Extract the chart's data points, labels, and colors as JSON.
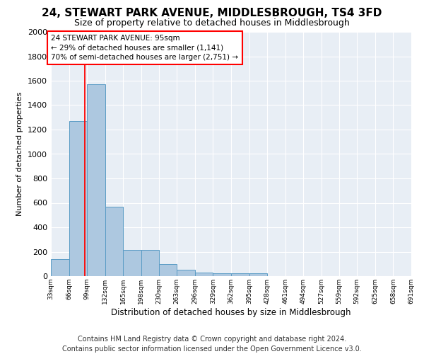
{
  "title": "24, STEWART PARK AVENUE, MIDDLESBROUGH, TS4 3FD",
  "subtitle": "Size of property relative to detached houses in Middlesbrough",
  "xlabel": "Distribution of detached houses by size in Middlesbrough",
  "ylabel": "Number of detached properties",
  "bar_color": "#adc8e0",
  "bar_edge_color": "#5a9cc5",
  "background_color": "#e8eef5",
  "grid_color": "#ffffff",
  "bin_edges": [
    33,
    66,
    99,
    132,
    165,
    198,
    230,
    263,
    296,
    329,
    362,
    395,
    428,
    461,
    494,
    527,
    559,
    592,
    625,
    658,
    691
  ],
  "bin_labels": [
    "33sqm",
    "66sqm",
    "99sqm",
    "132sqm",
    "165sqm",
    "198sqm",
    "230sqm",
    "263sqm",
    "296sqm",
    "329sqm",
    "362sqm",
    "395sqm",
    "428sqm",
    "461sqm",
    "494sqm",
    "527sqm",
    "559sqm",
    "592sqm",
    "625sqm",
    "658sqm",
    "691sqm"
  ],
  "bar_heights": [
    140,
    1270,
    1570,
    570,
    215,
    215,
    100,
    50,
    30,
    25,
    25,
    25,
    0,
    0,
    0,
    0,
    0,
    0,
    0,
    0
  ],
  "red_line_x": 95,
  "ylim": [
    0,
    2000
  ],
  "yticks": [
    0,
    200,
    400,
    600,
    800,
    1000,
    1200,
    1400,
    1600,
    1800,
    2000
  ],
  "annotation_title": "24 STEWART PARK AVENUE: 95sqm",
  "annotation_line1": "← 29% of detached houses are smaller (1,141)",
  "annotation_line2": "70% of semi-detached houses are larger (2,751) →",
  "footer_line1": "Contains HM Land Registry data © Crown copyright and database right 2024.",
  "footer_line2": "Contains public sector information licensed under the Open Government Licence v3.0.",
  "title_fontsize": 11,
  "subtitle_fontsize": 9,
  "annotation_fontsize": 7.5,
  "footer_fontsize": 7
}
